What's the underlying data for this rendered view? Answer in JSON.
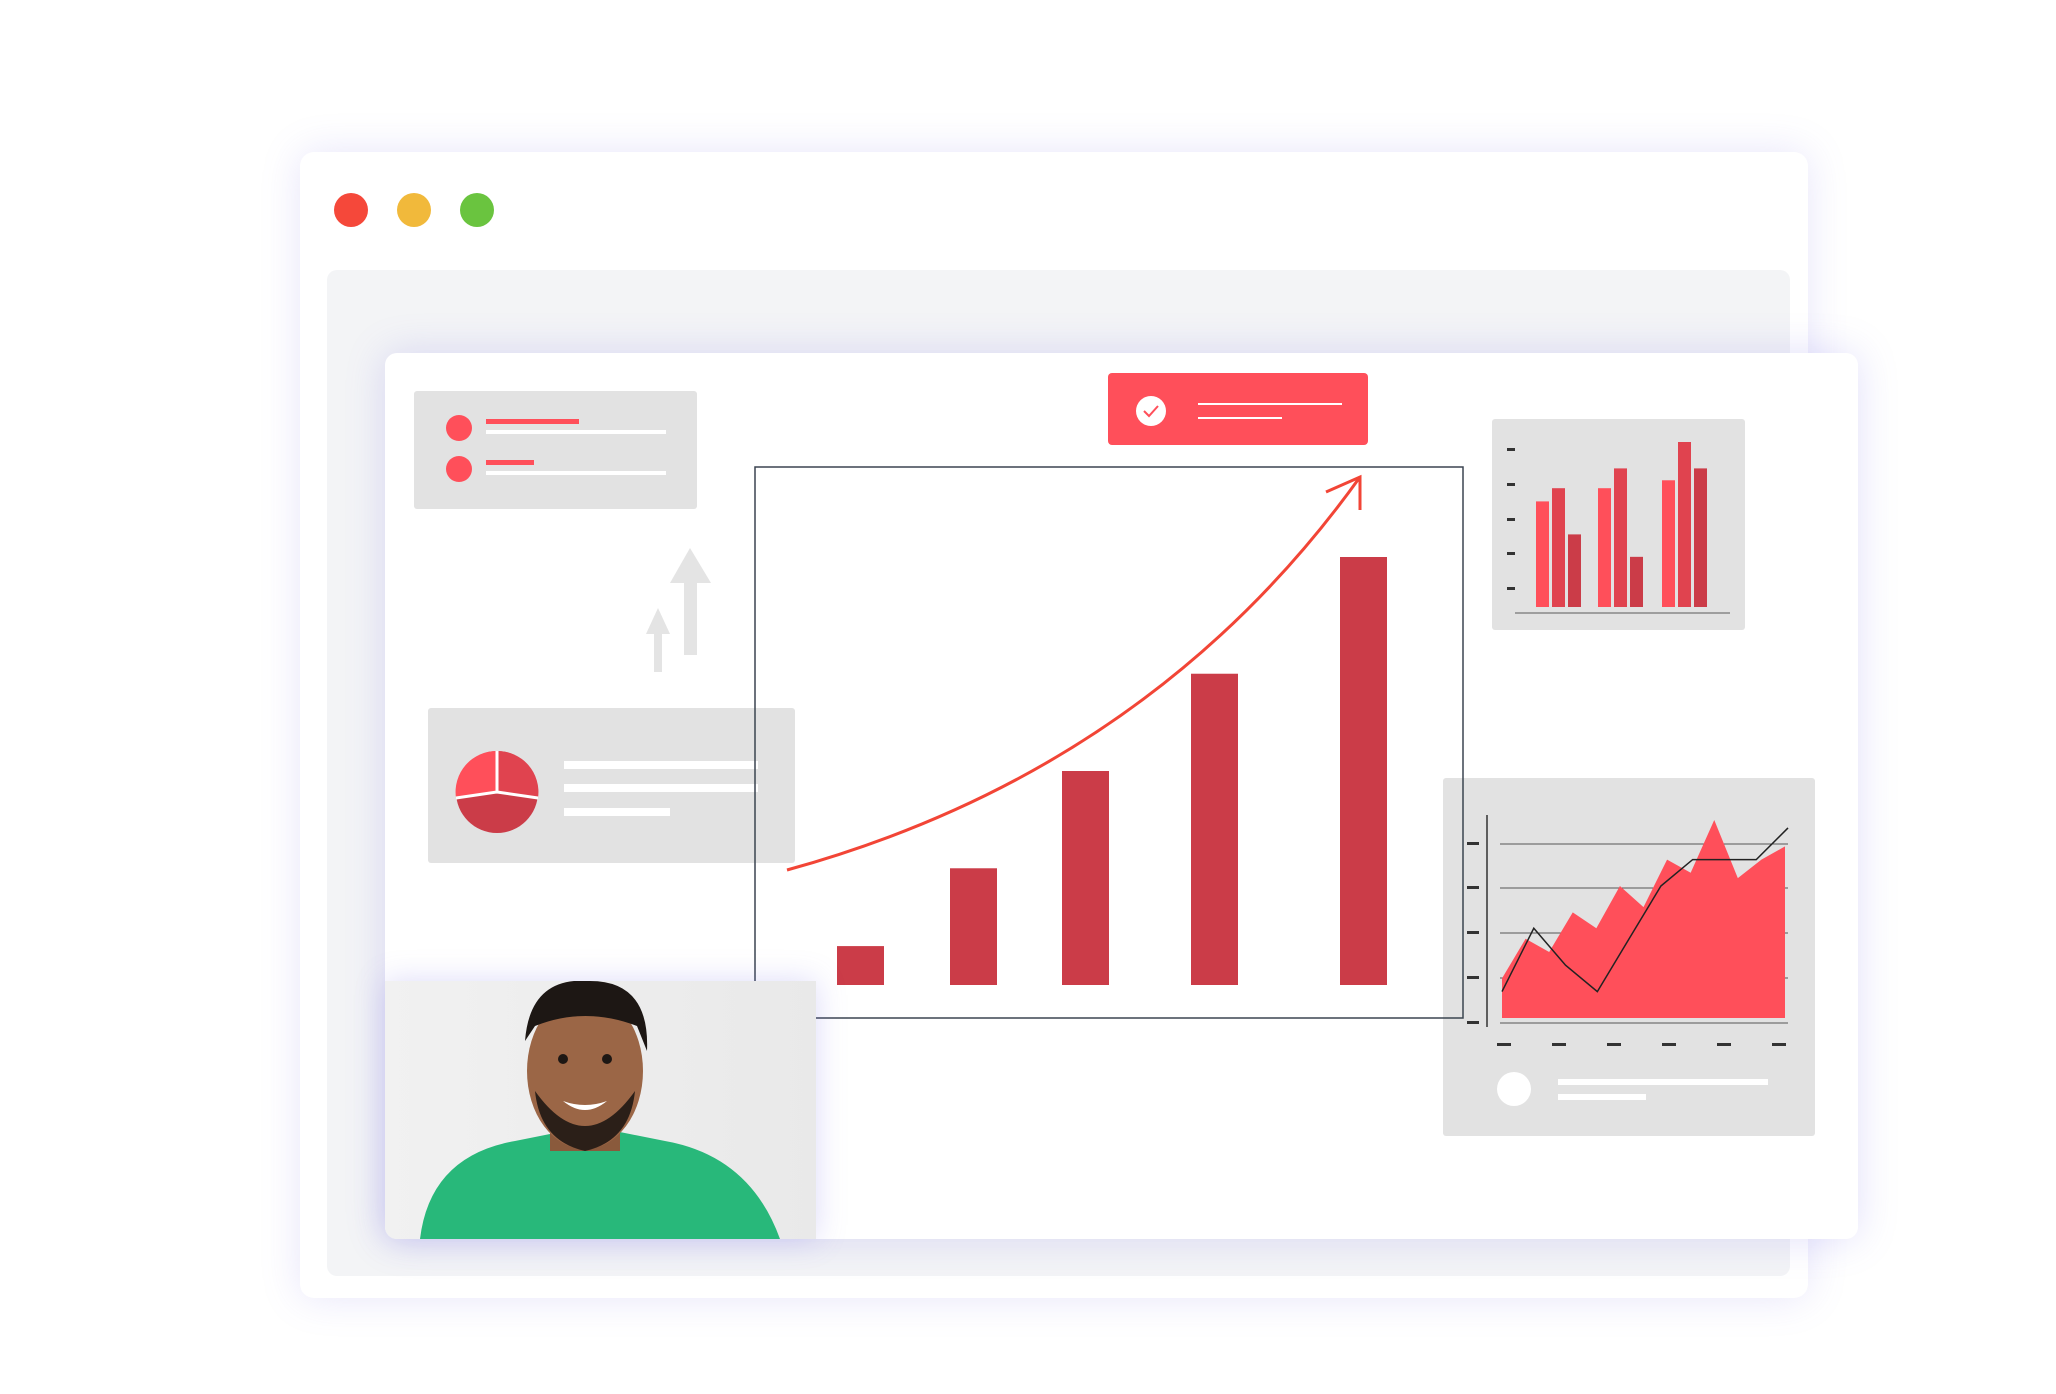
{
  "window": {
    "controls": [
      {
        "name": "close",
        "color": "#f5483a"
      },
      {
        "name": "minimize",
        "color": "#f1b93b"
      },
      {
        "name": "maximize",
        "color": "#6ac43f"
      }
    ]
  },
  "colors": {
    "accent": "#ff4f5a",
    "bar_dark": "#cb3c48",
    "card_gray": "#e2e2e2",
    "curve": "#f24536",
    "shirt": "#28b87a"
  },
  "banner": {
    "icon": "check-circle-icon"
  },
  "main_chart": {
    "type": "bar",
    "values": [
      1,
      3,
      5.5,
      8,
      11
    ],
    "trend": "rising-arrow"
  },
  "mini_bar_chart": {
    "type": "bar",
    "groups": [
      [
        8,
        9,
        5.5
      ],
      [
        9,
        10.5,
        3.8
      ],
      [
        9.6,
        12.5,
        10.5
      ]
    ]
  },
  "area_chart": {
    "type": "area",
    "values": [
      1.5,
      3,
      2.5,
      4,
      3.4,
      5,
      4.2,
      6,
      5.5,
      7.5,
      5.3,
      6,
      6.5
    ],
    "line": [
      1,
      3.4,
      2,
      1,
      3,
      5,
      6,
      6,
      6,
      7.2
    ]
  },
  "pie": {
    "type": "pie",
    "slices": [
      30,
      35,
      35
    ]
  },
  "photo": {
    "subject": "smiling-man-green-shirt"
  }
}
